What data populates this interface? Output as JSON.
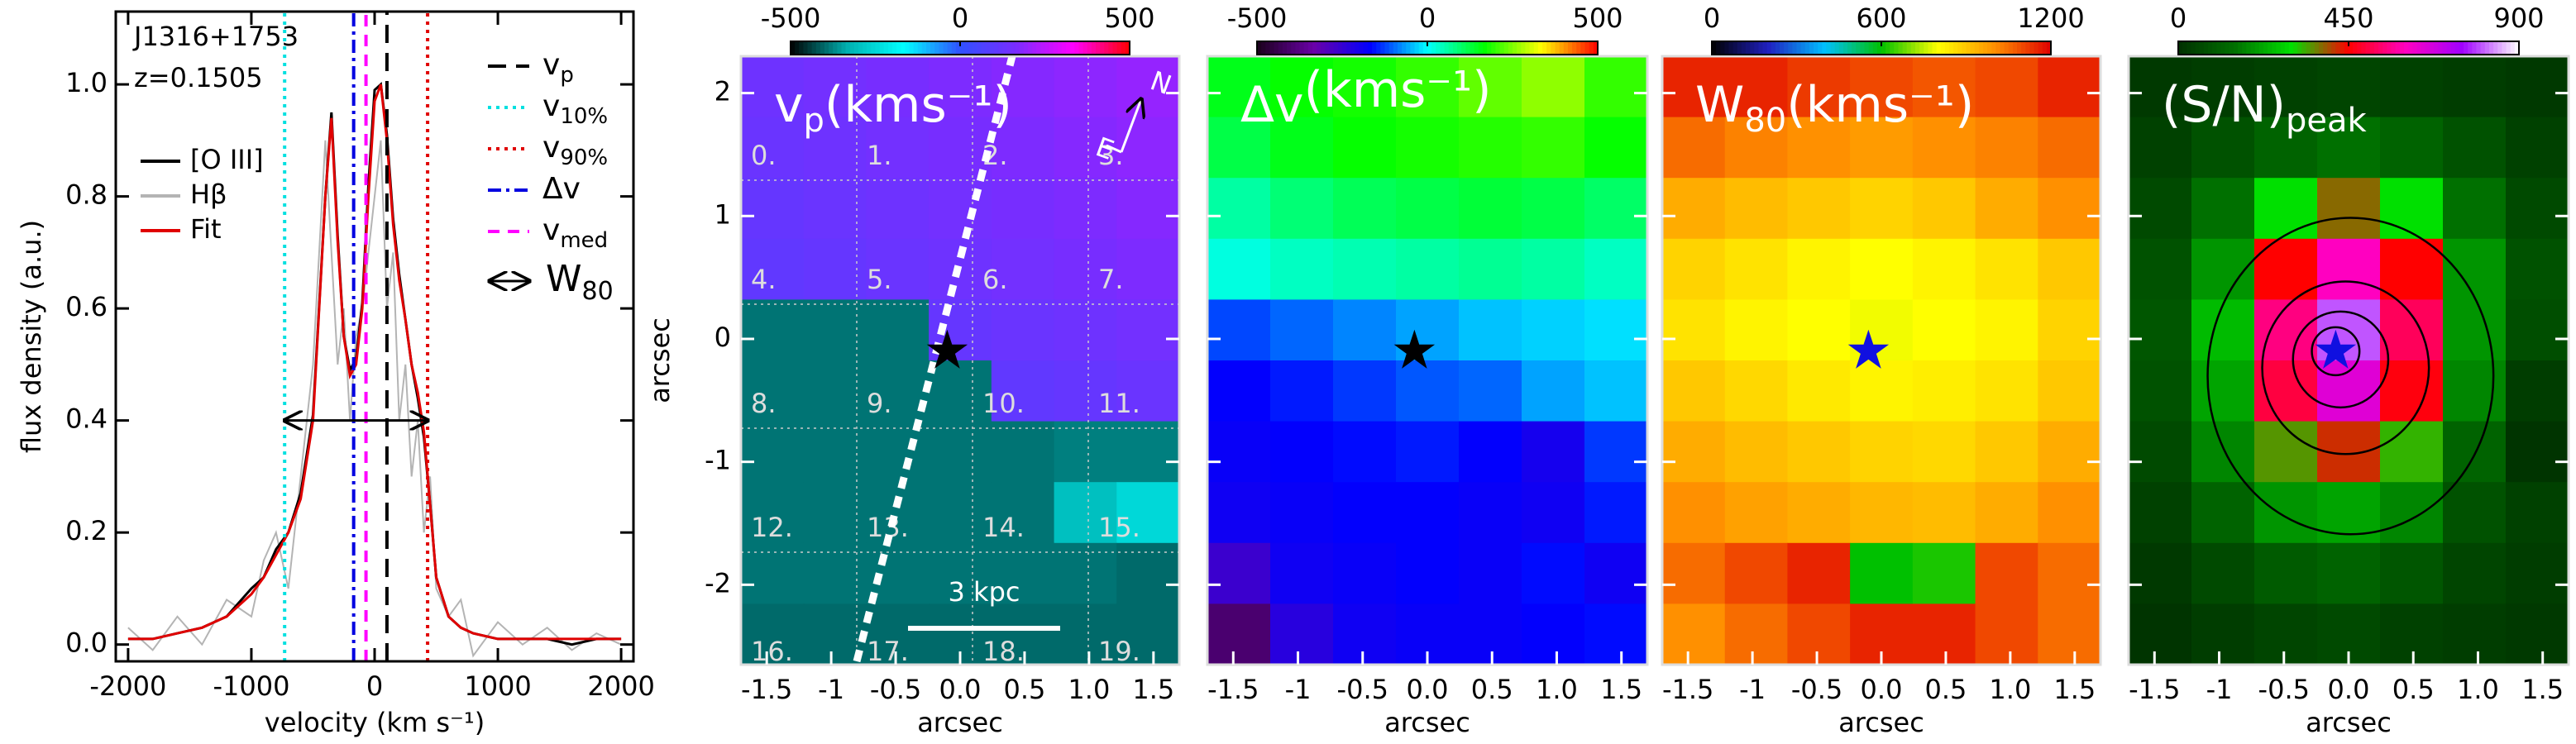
{
  "chart_data": [
    {
      "type": "line",
      "title": "J1316+1753",
      "subtitle": "z=0.1505",
      "x_label": "velocity (km s⁻¹)",
      "y_label": "flux density (a.u.)",
      "x": [
        -2000,
        -1800,
        -1600,
        -1400,
        -1200,
        -1000,
        -900,
        -800,
        -700,
        -600,
        -500,
        -400,
        -350,
        -300,
        -250,
        -200,
        -150,
        -100,
        -50,
        0,
        50,
        100,
        150,
        200,
        250,
        300,
        350,
        400,
        450,
        500,
        600,
        700,
        800,
        1000,
        1200,
        1400,
        1600,
        1800,
        2000
      ],
      "series": [
        {
          "name": "Hβ",
          "color": "#b4b4b4",
          "values": [
            0.03,
            -0.01,
            0.05,
            0.0,
            0.08,
            0.05,
            0.15,
            0.2,
            0.1,
            0.3,
            0.5,
            0.9,
            0.7,
            0.5,
            0.6,
            0.4,
            0.55,
            0.6,
            0.7,
            0.8,
            0.9,
            0.6,
            0.7,
            0.4,
            0.5,
            0.3,
            0.4,
            0.2,
            0.3,
            0.1,
            0.05,
            0.08,
            -0.02,
            0.04,
            0.0,
            0.03,
            -0.01,
            0.02,
            0.0
          ]
        },
        {
          "name": "[O III]",
          "color": "#000000",
          "values": [
            0.01,
            0.01,
            0.02,
            0.03,
            0.05,
            0.1,
            0.12,
            0.17,
            0.2,
            0.27,
            0.41,
            0.8,
            0.95,
            0.73,
            0.55,
            0.49,
            0.51,
            0.61,
            0.82,
            0.99,
            1.0,
            0.91,
            0.76,
            0.66,
            0.58,
            0.5,
            0.44,
            0.37,
            0.25,
            0.12,
            0.05,
            0.03,
            0.02,
            0.01,
            0.01,
            0.01,
            0.0,
            0.01,
            0.01
          ]
        },
        {
          "name": "Fit",
          "color": "#e00000",
          "values": [
            0.01,
            0.01,
            0.02,
            0.03,
            0.05,
            0.09,
            0.12,
            0.16,
            0.2,
            0.26,
            0.4,
            0.8,
            0.94,
            0.72,
            0.55,
            0.48,
            0.5,
            0.6,
            0.8,
            0.97,
            1.0,
            0.9,
            0.75,
            0.65,
            0.58,
            0.5,
            0.45,
            0.38,
            0.25,
            0.12,
            0.05,
            0.03,
            0.02,
            0.01,
            0.01,
            0.01,
            0.01,
            0.01,
            0.01
          ]
        }
      ],
      "xlim": [
        -2100,
        2100
      ],
      "xticks": [
        -2000,
        -1000,
        0,
        1000,
        2000
      ],
      "ylim": [
        -0.03,
        1.13
      ],
      "yticks": [
        {
          "value": 0,
          "label": "0.0"
        },
        {
          "value": 0.2,
          "label": "0.2"
        },
        {
          "value": 0.4,
          "label": "0.4"
        },
        {
          "value": 0.6,
          "label": "0.6"
        },
        {
          "value": 0.8,
          "label": "0.8"
        },
        {
          "value": 1,
          "label": "1.0"
        }
      ],
      "vlines": [
        {
          "name": "v",
          "sub": "p",
          "x": 100,
          "color": "#000000",
          "dash": "22,12"
        },
        {
          "name": "v",
          "sub": "10%",
          "x": -730,
          "color": "#00e0e0",
          "dash": "4,6"
        },
        {
          "name": "v",
          "sub": "90%",
          "x": 430,
          "color": "#e00000",
          "dash": "4,6"
        },
        {
          "name": "Δv",
          "x": -170,
          "color": "#0000e0",
          "dash": "16,6,4,6"
        },
        {
          "name": "v",
          "sub": "med",
          "x": -70,
          "color": "#ff00ff",
          "dash": "14,10"
        }
      ],
      "arrow": {
        "name": "W",
        "sub": "80",
        "x": [
          -730,
          430
        ],
        "y": 0.4
      }
    },
    {
      "type": "heatmap",
      "title": "v",
      "title_sub": "p",
      "title_rest": "(kms⁻¹)",
      "x_label": "arcsec",
      "y_label": "arcsec",
      "xlim": [
        -1.7,
        1.7
      ],
      "ylim": [
        -2.65,
        2.3
      ],
      "xticks": [
        -1.5,
        -1,
        -0.5,
        {
          "value": 0,
          "label": "0.0"
        },
        0.5,
        {
          "value": 1,
          "label": "1.0"
        },
        1.5
      ],
      "yticks": [
        -2,
        -1,
        0,
        1,
        2
      ],
      "values": [
        [
          140,
          150,
          160,
          170,
          180,
          190,
          200
        ],
        [
          130,
          140,
          150,
          160,
          170,
          180,
          190
        ],
        [
          120,
          130,
          140,
          150,
          160,
          170,
          180
        ],
        [
          110,
          120,
          130,
          140,
          150,
          160,
          170
        ],
        [
          -390,
          -390,
          -390,
          120,
          130,
          140,
          150
        ],
        [
          -390,
          -390,
          -390,
          -390,
          110,
          120,
          130
        ],
        [
          -390,
          -390,
          -390,
          -390,
          -390,
          -380,
          -380
        ],
        [
          -390,
          -390,
          -390,
          -390,
          -390,
          -300,
          -250
        ],
        [
          -390,
          -390,
          -390,
          -390,
          -390,
          -390,
          -400
        ],
        [
          -400,
          -400,
          -400,
          -400,
          -400,
          -400,
          -400
        ]
      ],
      "colorbar": {
        "lim": [
          -500,
          500
        ],
        "ticks": [
          -500,
          0,
          500
        ],
        "colors": [
          "#000000",
          "#00b0b0",
          "#00ffff",
          "#3050ff",
          "#7a2cff",
          "#ff00ff",
          "#ff0000"
        ]
      },
      "star": {
        "x": -0.1,
        "y": -0.1,
        "color": "#000000"
      },
      "scale_bar": "3 kpc",
      "compass": [
        "N",
        "E"
      ],
      "spaxel_labels": [
        "0.",
        "1.",
        "2.",
        "3.",
        "4.",
        "5.",
        "6.",
        "7.",
        "8.",
        "9.",
        "10.",
        "11.",
        "12.",
        "13.",
        "14.",
        "15.",
        "16.",
        "17.",
        "18.",
        "19."
      ]
    },
    {
      "type": "heatmap",
      "title": "Δv",
      "title_rest": "(kms⁻¹)",
      "x_label": "arcsec",
      "xlim": [
        -1.7,
        1.7
      ],
      "ylim": [
        -2.65,
        2.3
      ],
      "xticks": [
        -1.5,
        -1,
        -0.5,
        {
          "value": 0,
          "label": "0.0"
        },
        0.5,
        {
          "value": 1,
          "label": "1.0"
        },
        1.5
      ],
      "yticks": [
        -2,
        -1,
        0,
        1,
        2
      ],
      "values": [
        [
          150,
          170,
          180,
          200,
          230,
          260,
          200
        ],
        [
          120,
          150,
          170,
          180,
          190,
          200,
          170
        ],
        [
          60,
          90,
          110,
          120,
          130,
          120,
          100
        ],
        [
          20,
          40,
          50,
          60,
          70,
          60,
          40
        ],
        [
          -120,
          -100,
          -80,
          -60,
          -40,
          -30,
          -20
        ],
        [
          -170,
          -150,
          -130,
          -110,
          -100,
          -60,
          -40
        ],
        [
          -180,
          -170,
          -160,
          -150,
          -170,
          -200,
          -130
        ],
        [
          -190,
          -180,
          -170,
          -170,
          -180,
          -190,
          -150
        ],
        [
          -260,
          -190,
          -180,
          -170,
          -180,
          -160,
          -190
        ],
        [
          -400,
          -230,
          -190,
          -180,
          -180,
          -170,
          -160
        ]
      ],
      "colorbar": {
        "lim": [
          -500,
          500
        ],
        "ticks": [
          -500,
          0,
          500
        ],
        "colors": [
          "#1a001a",
          "#6a00a8",
          "#0000ff",
          "#00ffff",
          "#00ff00",
          "#ffff00",
          "#ff0000"
        ]
      },
      "star": {
        "x": -0.1,
        "y": -0.1,
        "color": "#000000"
      }
    },
    {
      "type": "heatmap",
      "title": "W",
      "title_sub": "80",
      "title_rest": "(kms⁻¹)",
      "x_label": "arcsec",
      "xlim": [
        -1.7,
        1.7
      ],
      "ylim": [
        -2.65,
        2.3
      ],
      "xticks": [
        -1.5,
        -1,
        -0.5,
        {
          "value": 0,
          "label": "0.0"
        },
        0.5,
        {
          "value": 1,
          "label": "1.0"
        },
        1.5
      ],
      "yticks": [
        -2,
        -1,
        0,
        1,
        2
      ],
      "values": [
        [
          1150,
          1150,
          1120,
          1100,
          1080,
          1100,
          1150
        ],
        [
          1050,
          1020,
          1000,
          980,
          1000,
          1020,
          1050
        ],
        [
          950,
          920,
          900,
          880,
          900,
          950,
          1000
        ],
        [
          880,
          850,
          820,
          800,
          820,
          850,
          900
        ],
        [
          850,
          820,
          800,
          790,
          800,
          820,
          880
        ],
        [
          900,
          870,
          840,
          820,
          830,
          850,
          900
        ],
        [
          950,
          920,
          900,
          880,
          870,
          900,
          950
        ],
        [
          1000,
          970,
          950,
          930,
          920,
          950,
          1000
        ],
        [
          1050,
          1100,
          1150,
          600,
          620,
          1100,
          1050
        ],
        [
          1000,
          1050,
          1100,
          1150,
          1150,
          1100,
          1050
        ]
      ],
      "colorbar": {
        "lim": [
          0,
          1200
        ],
        "ticks": [
          0,
          600,
          1200
        ],
        "colors": [
          "#000000",
          "#2020c0",
          "#00c0ff",
          "#00c000",
          "#ffff00",
          "#ff9000",
          "#e00000"
        ]
      },
      "star": {
        "x": -0.1,
        "y": -0.1,
        "color": "#1010e0"
      }
    },
    {
      "type": "heatmap",
      "title": "(S/N)",
      "title_sub": "peak",
      "x_label": "arcsec",
      "xlim": [
        -1.7,
        1.7
      ],
      "ylim": [
        -2.65,
        2.3
      ],
      "xticks": [
        -1.5,
        -1,
        -0.5,
        {
          "value": 0,
          "label": "0.0"
        },
        0.5,
        {
          "value": 1,
          "label": "1.0"
        },
        1.5
      ],
      "yticks": [
        -2,
        -1,
        0,
        1,
        2
      ],
      "values": [
        [
          20,
          30,
          40,
          50,
          40,
          30,
          20
        ],
        [
          40,
          80,
          120,
          150,
          120,
          80,
          40
        ],
        [
          60,
          150,
          300,
          380,
          300,
          150,
          60
        ],
        [
          80,
          200,
          450,
          600,
          450,
          200,
          80
        ],
        [
          90,
          250,
          550,
          800,
          520,
          200,
          70
        ],
        [
          80,
          220,
          500,
          650,
          460,
          180,
          30
        ],
        [
          60,
          180,
          350,
          420,
          330,
          120,
          10
        ],
        [
          40,
          120,
          200,
          220,
          180,
          80,
          40
        ],
        [
          20,
          60,
          100,
          120,
          90,
          50,
          30
        ],
        [
          10,
          30,
          50,
          60,
          40,
          30,
          20
        ]
      ],
      "colorbar": {
        "lim": [
          0,
          900
        ],
        "ticks": [
          0,
          450,
          900
        ],
        "colors": [
          "#003000",
          "#007000",
          "#00e000",
          "#ff0000",
          "#ff00c0",
          "#a000ff",
          "#ffffff"
        ]
      },
      "star": {
        "x": -0.1,
        "y": -0.1,
        "color": "#1010e0"
      }
    }
  ]
}
